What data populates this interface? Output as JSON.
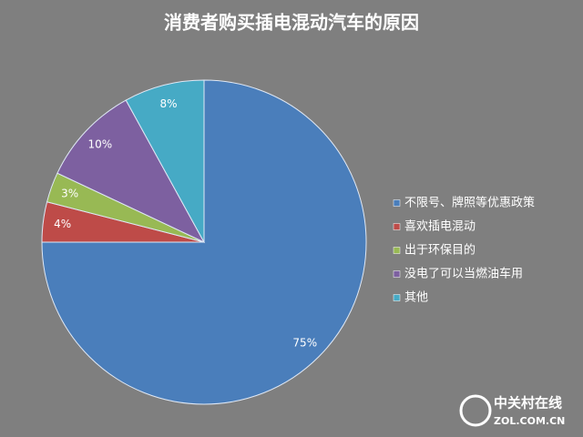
{
  "chart_data": {
    "type": "pie",
    "title": "消费者购买插电混动汽车的原因",
    "categories": [
      "不限号、牌照等优惠政策",
      "喜欢插电混动",
      "出于环保目的",
      "没电了可以当燃油车用",
      "其他"
    ],
    "values": [
      75,
      4,
      3,
      10,
      8
    ],
    "value_labels": [
      "75%",
      "4%",
      "3%",
      "10%",
      "8%"
    ],
    "colors": [
      "#4a7ebb",
      "#be4b48",
      "#98b954",
      "#7d60a0",
      "#46aac5"
    ],
    "legend": "right"
  },
  "watermark": {
    "name": "中关村在线",
    "url": "ZOL.COM.CN"
  }
}
